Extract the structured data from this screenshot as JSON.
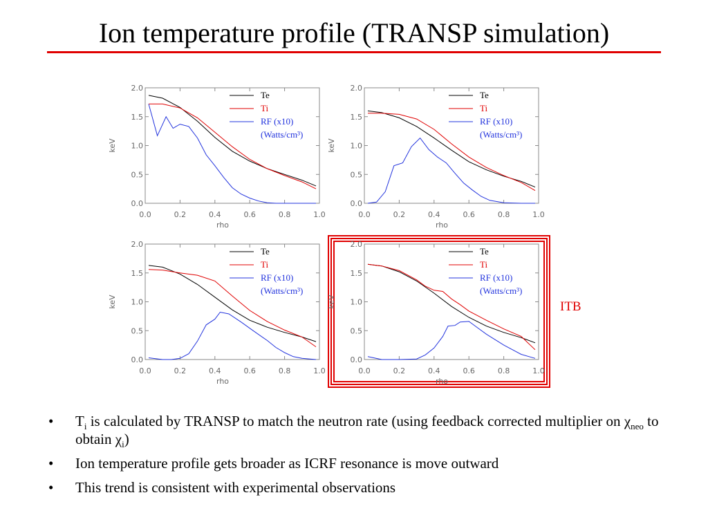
{
  "slide": {
    "title": "Ion temperature profile (TRANSP simulation)",
    "accent_color": "#e00000",
    "annotation": "ITB",
    "bullets": [
      {
        "pre": "T",
        "sub1": "i",
        "mid": " is calculated by TRANSP to match the neutron rate (using feedback corrected multiplier on ",
        "chi1": "χ",
        "sub2": "neo",
        "mid2": " to obtain ",
        "chi2": "χ",
        "sub3": "i",
        "post": ")"
      },
      {
        "text": "Ion temperature profile gets broader as ICRF resonance is move outward"
      },
      {
        "text": "This trend is consistent with experimental observations"
      }
    ],
    "bullet_symbol": "•"
  },
  "chart_data": [
    {
      "type": "line",
      "xlabel": "rho",
      "ylabel": "keV",
      "xlim": [
        0,
        1
      ],
      "ylim": [
        0,
        2
      ],
      "xticks": [
        "0.0",
        "0.2",
        "0.4",
        "0.6",
        "0.8",
        "1.0"
      ],
      "yticks": [
        "0.0",
        "0.5",
        "1.0",
        "1.5",
        "2.0"
      ],
      "legend": [
        "Te",
        "Ti",
        "RF (x10)",
        "(Watts/cm³)"
      ],
      "highlighted": false,
      "series": [
        {
          "name": "Te",
          "color": "#000000",
          "x": [
            0.02,
            0.1,
            0.2,
            0.3,
            0.4,
            0.5,
            0.6,
            0.7,
            0.8,
            0.9,
            0.98
          ],
          "y": [
            1.87,
            1.82,
            1.66,
            1.42,
            1.14,
            0.9,
            0.73,
            0.6,
            0.5,
            0.4,
            0.3
          ]
        },
        {
          "name": "Ti",
          "color": "#e00000",
          "x": [
            0.02,
            0.1,
            0.2,
            0.3,
            0.4,
            0.5,
            0.6,
            0.7,
            0.8,
            0.9,
            0.98
          ],
          "y": [
            1.72,
            1.72,
            1.65,
            1.48,
            1.23,
            0.98,
            0.76,
            0.6,
            0.48,
            0.37,
            0.25
          ]
        },
        {
          "name": "RF (x10)",
          "color": "#2233dd",
          "x": [
            0.02,
            0.07,
            0.12,
            0.16,
            0.2,
            0.25,
            0.3,
            0.35,
            0.4,
            0.45,
            0.5,
            0.55,
            0.6,
            0.65,
            0.7,
            0.75,
            0.8,
            0.9,
            0.98
          ],
          "y": [
            1.72,
            1.17,
            1.5,
            1.3,
            1.37,
            1.33,
            1.13,
            0.84,
            0.65,
            0.45,
            0.27,
            0.16,
            0.09,
            0.04,
            0.01,
            0,
            0,
            0,
            0
          ]
        }
      ]
    },
    {
      "type": "line",
      "xlabel": "rho",
      "ylabel": "keV",
      "xlim": [
        0,
        1
      ],
      "ylim": [
        0,
        2
      ],
      "xticks": [
        "0.0",
        "0.2",
        "0.4",
        "0.6",
        "0.8",
        "1.0"
      ],
      "yticks": [
        "0.0",
        "0.5",
        "1.0",
        "1.5",
        "2.0"
      ],
      "legend": [
        "Te",
        "Ti",
        "RF (x10)",
        "(Watts/cm³)"
      ],
      "highlighted": false,
      "series": [
        {
          "name": "Te",
          "color": "#000000",
          "x": [
            0.02,
            0.1,
            0.2,
            0.3,
            0.4,
            0.5,
            0.6,
            0.7,
            0.8,
            0.9,
            0.98
          ],
          "y": [
            1.6,
            1.57,
            1.48,
            1.33,
            1.13,
            0.92,
            0.72,
            0.58,
            0.47,
            0.38,
            0.28
          ]
        },
        {
          "name": "Ti",
          "color": "#e00000",
          "x": [
            0.02,
            0.1,
            0.2,
            0.3,
            0.4,
            0.5,
            0.6,
            0.7,
            0.8,
            0.9,
            0.98
          ],
          "y": [
            1.56,
            1.56,
            1.54,
            1.46,
            1.28,
            1.03,
            0.8,
            0.62,
            0.48,
            0.36,
            0.22
          ]
        },
        {
          "name": "RF (x10)",
          "color": "#2233dd",
          "x": [
            0.02,
            0.07,
            0.12,
            0.17,
            0.22,
            0.27,
            0.32,
            0.37,
            0.42,
            0.47,
            0.52,
            0.57,
            0.62,
            0.67,
            0.72,
            0.8,
            0.9,
            0.98
          ],
          "y": [
            0,
            0.02,
            0.2,
            0.65,
            0.7,
            0.98,
            1.13,
            0.93,
            0.8,
            0.7,
            0.52,
            0.35,
            0.23,
            0.12,
            0.05,
            0.01,
            0,
            0
          ]
        }
      ]
    },
    {
      "type": "line",
      "xlabel": "rho",
      "ylabel": "keV",
      "xlim": [
        0,
        1
      ],
      "ylim": [
        0,
        2
      ],
      "xticks": [
        "0.0",
        "0.2",
        "0.4",
        "0.6",
        "0.8",
        "1.0"
      ],
      "yticks": [
        "0.0",
        "0.5",
        "1.0",
        "1.5",
        "2.0"
      ],
      "legend": [
        "Te",
        "Ti",
        "RF (x10)",
        "(Watts/cm³)"
      ],
      "highlighted": false,
      "series": [
        {
          "name": "Te",
          "color": "#000000",
          "x": [
            0.02,
            0.1,
            0.2,
            0.3,
            0.4,
            0.5,
            0.6,
            0.7,
            0.8,
            0.9,
            0.98
          ],
          "y": [
            1.63,
            1.6,
            1.48,
            1.3,
            1.08,
            0.86,
            0.68,
            0.56,
            0.47,
            0.39,
            0.31
          ]
        },
        {
          "name": "Ti",
          "color": "#e00000",
          "x": [
            0.02,
            0.1,
            0.2,
            0.3,
            0.4,
            0.5,
            0.6,
            0.7,
            0.8,
            0.9,
            0.98
          ],
          "y": [
            1.56,
            1.55,
            1.5,
            1.46,
            1.36,
            1.1,
            0.85,
            0.66,
            0.51,
            0.39,
            0.22
          ]
        },
        {
          "name": "RF (x10)",
          "color": "#2233dd",
          "x": [
            0.02,
            0.1,
            0.15,
            0.2,
            0.25,
            0.3,
            0.35,
            0.4,
            0.43,
            0.48,
            0.55,
            0.62,
            0.7,
            0.75,
            0.8,
            0.85,
            0.9,
            0.98
          ],
          "y": [
            0.03,
            0,
            0,
            0.02,
            0.1,
            0.32,
            0.6,
            0.7,
            0.82,
            0.79,
            0.65,
            0.5,
            0.33,
            0.21,
            0.12,
            0.05,
            0.02,
            0
          ]
        }
      ]
    },
    {
      "type": "line",
      "xlabel": "rho",
      "ylabel": "keV",
      "xlim": [
        0,
        1
      ],
      "ylim": [
        0,
        2
      ],
      "xticks": [
        "0.0",
        "0.2",
        "0.4",
        "0.6",
        "0.8",
        "1.0"
      ],
      "yticks": [
        "0.0",
        "0.5",
        "1.0",
        "1.5",
        "2.0"
      ],
      "legend": [
        "Te",
        "Ti",
        "RF (x10)",
        "(Watts/cm³)"
      ],
      "highlighted": true,
      "series": [
        {
          "name": "Te",
          "color": "#000000",
          "x": [
            0.02,
            0.1,
            0.2,
            0.3,
            0.4,
            0.5,
            0.6,
            0.7,
            0.8,
            0.9,
            0.98
          ],
          "y": [
            1.65,
            1.62,
            1.52,
            1.36,
            1.15,
            0.92,
            0.73,
            0.58,
            0.47,
            0.38,
            0.29
          ]
        },
        {
          "name": "Ti",
          "color": "#e00000",
          "x": [
            0.02,
            0.1,
            0.2,
            0.3,
            0.35,
            0.4,
            0.45,
            0.5,
            0.55,
            0.6,
            0.7,
            0.8,
            0.9,
            0.98
          ],
          "y": [
            1.65,
            1.62,
            1.54,
            1.38,
            1.27,
            1.2,
            1.18,
            1.05,
            0.95,
            0.84,
            0.68,
            0.53,
            0.4,
            0.17
          ]
        },
        {
          "name": "RF (x10)",
          "color": "#2233dd",
          "x": [
            0.02,
            0.1,
            0.2,
            0.3,
            0.35,
            0.4,
            0.45,
            0.48,
            0.52,
            0.55,
            0.6,
            0.65,
            0.7,
            0.8,
            0.9,
            0.98
          ],
          "y": [
            0.05,
            0,
            0,
            0.01,
            0.08,
            0.2,
            0.4,
            0.58,
            0.59,
            0.65,
            0.66,
            0.55,
            0.44,
            0.25,
            0.09,
            0.02
          ]
        }
      ]
    }
  ]
}
